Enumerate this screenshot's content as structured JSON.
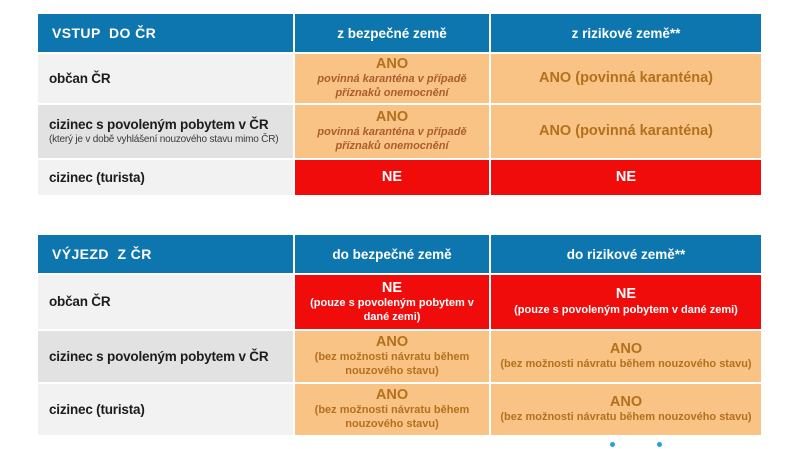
{
  "colors": {
    "header_blue": "#0e76ae",
    "cell_orange": "#f9c386",
    "cell_red": "#f10c0c",
    "row_light": "#f2f2f2",
    "row_dark": "#e2e2e2",
    "text_brown": "#b4701c",
    "text_brown_italic": "#ad5c2c",
    "label_black": "#1c1c1c",
    "dot_blue": "#2b9fd7"
  },
  "tables": [
    {
      "header": {
        "title": "VSTUP  DO ČR",
        "col2": "z bezpečné země",
        "col3": "z rizikové země**"
      },
      "rows": [
        {
          "label": "občan ČR",
          "sublabel": "",
          "cells": [
            {
              "type": "orange",
              "main": "ANO",
              "sub": "povinná karanténa v případě příznaků onemocnění"
            },
            {
              "type": "orange",
              "main": "ANO (povinná karanténa)",
              "sub": ""
            }
          ]
        },
        {
          "label": "cizinec s povoleným pobytem v ČR",
          "sublabel": "(který je v době vyhlášení nouzového stavu mimo ČR)",
          "cells": [
            {
              "type": "orange",
              "main": "ANO",
              "sub": "povinná karanténa v případě příznaků onemocnění"
            },
            {
              "type": "orange",
              "main": "ANO (povinná karanténa)",
              "sub": ""
            }
          ]
        },
        {
          "label": "cizinec (turista)",
          "sublabel": "",
          "cells": [
            {
              "type": "red",
              "main": "NE",
              "sub": ""
            },
            {
              "type": "red",
              "main": "NE",
              "sub": ""
            }
          ]
        }
      ]
    },
    {
      "header": {
        "title": "VÝJEZD  Z ČR",
        "col2": "do bezpečné země",
        "col3": "do rizikové země**"
      },
      "rows": [
        {
          "label": "občan ČR",
          "sublabel": "",
          "cells": [
            {
              "type": "red",
              "main": "NE",
              "sub": "(pouze s povoleným pobytem v dané zemi)"
            },
            {
              "type": "red",
              "main": "NE",
              "sub": "(pouze s povoleným pobytem v dané zemi)"
            }
          ]
        },
        {
          "label": "cizinec s povoleným pobytem v ČR",
          "sublabel": "",
          "cells": [
            {
              "type": "orange",
              "main": "ANO",
              "sub": "(bez možnosti návratu během nouzového stavu)"
            },
            {
              "type": "orange",
              "main": "ANO",
              "sub": "(bez možnosti návratu během nouzového stavu)"
            }
          ]
        },
        {
          "label": "cizinec (turista)",
          "sublabel": "",
          "cells": [
            {
              "type": "orange",
              "main": "ANO",
              "sub": "(bez možnosti návratu během nouzového stavu)"
            },
            {
              "type": "orange",
              "main": "ANO",
              "sub": "(bez možnosti návratu během nouzového stavu)"
            }
          ]
        }
      ]
    }
  ],
  "pagination": {
    "dot_count": 2
  }
}
